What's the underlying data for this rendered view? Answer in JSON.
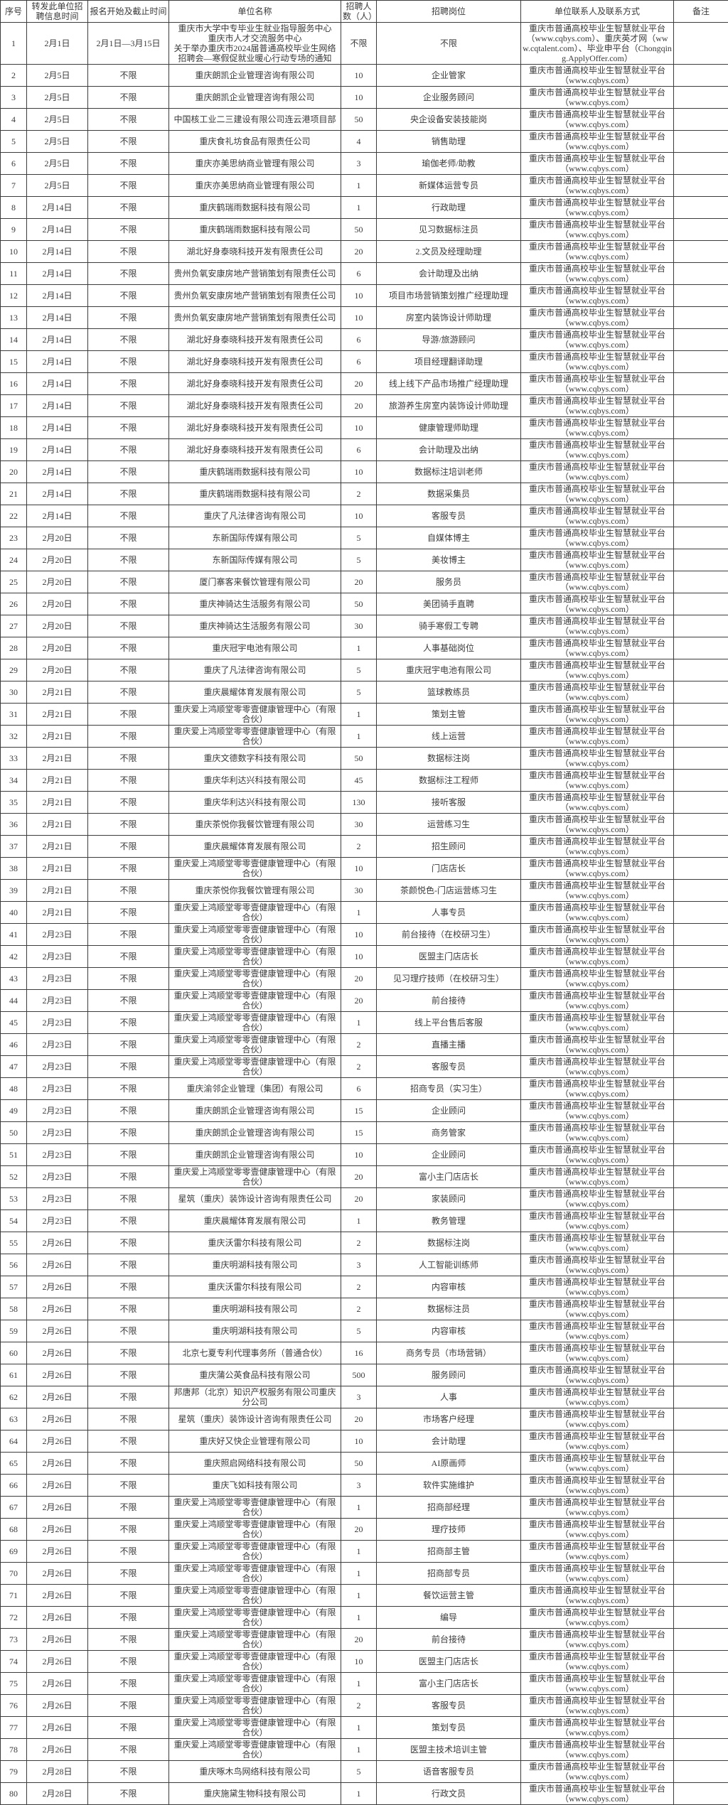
{
  "table": {
    "headers": [
      "序号",
      "转发此单位招聘信息时间",
      "报名开始及截止时间",
      "单位名称",
      "招聘人数（人）",
      "招聘岗位",
      "单位联系人及联系方式",
      "备注"
    ],
    "default_contact": "重庆市普通高校毕业生智慧就业平台（www.cqbys.com）",
    "rows": [
      {
        "seq": "1",
        "fwd": "2月1日",
        "reg": "2月1日—3月15日",
        "company": "重庆市大学中专毕业生就业指导服务中心\n重庆市人才交流服务中心\n关于举办重庆市2024届普通高校毕业生网络招聘会—寒假促就业暖心行动专场的通知",
        "num": "不限",
        "pos": "不限",
        "contact": "重庆市普通高校毕业生智慧就业平台（www.cqbys.com）、重庆英才网（www.cqtalent.com）、毕业申平台（Chongqing.ApplyOffer.com）",
        "note": ""
      },
      {
        "seq": "2",
        "fwd": "2月5日",
        "reg": "不限",
        "company": "重庆朗凯企业管理咨询有限公司",
        "num": "10",
        "pos": "企业管家",
        "note": ""
      },
      {
        "seq": "3",
        "fwd": "2月5日",
        "reg": "不限",
        "company": "重庆朗凯企业管理咨询有限公司",
        "num": "10",
        "pos": "企业服务顾问",
        "note": ""
      },
      {
        "seq": "4",
        "fwd": "2月5日",
        "reg": "不限",
        "company": "中国核工业二三建设有限公司连云港项目部",
        "num": "50",
        "pos": "央企设备安装技能岗",
        "note": ""
      },
      {
        "seq": "5",
        "fwd": "2月5日",
        "reg": "不限",
        "company": "重庆食礼坊食品有限责任公司",
        "num": "4",
        "pos": "销售助理",
        "note": ""
      },
      {
        "seq": "6",
        "fwd": "2月5日",
        "reg": "不限",
        "company": "重庆亦美思纳商业管理有限公司",
        "num": "3",
        "pos": "瑜伽老师/助教",
        "note": ""
      },
      {
        "seq": "7",
        "fwd": "2月5日",
        "reg": "不限",
        "company": "重庆亦美思纳商业管理有限公司",
        "num": "1",
        "pos": "新媒体运营专员",
        "note": ""
      },
      {
        "seq": "8",
        "fwd": "2月14日",
        "reg": "不限",
        "company": "重庆鹤瑞雨数据科技有限公司",
        "num": "1",
        "pos": "行政助理",
        "note": ""
      },
      {
        "seq": "9",
        "fwd": "2月14日",
        "reg": "不限",
        "company": "重庆鹤瑞雨数据科技有限公司",
        "num": "50",
        "pos": "见习数据标注员",
        "note": ""
      },
      {
        "seq": "10",
        "fwd": "2月14日",
        "reg": "不限",
        "company": "湖北好身泰晓科技开发有限责任公司",
        "num": "20",
        "pos": "2.文员及经理助理",
        "note": ""
      },
      {
        "seq": "11",
        "fwd": "2月14日",
        "reg": "不限",
        "company": "贵州负氧安康房地产营销策划有限责任公司",
        "num": "6",
        "pos": "会计助理及出纳",
        "note": ""
      },
      {
        "seq": "12",
        "fwd": "2月14日",
        "reg": "不限",
        "company": "贵州负氧安康房地产营销策划有限责任公司",
        "num": "10",
        "pos": "项目市场营销策划推广经理助理",
        "note": ""
      },
      {
        "seq": "13",
        "fwd": "2月14日",
        "reg": "不限",
        "company": "贵州负氧安康房地产营销策划有限责任公司",
        "num": "10",
        "pos": "房室内装饰设计师助理",
        "note": ""
      },
      {
        "seq": "14",
        "fwd": "2月14日",
        "reg": "不限",
        "company": "湖北好身泰晓科技开发有限责任公司",
        "num": "6",
        "pos": "导游/旅游顾问",
        "note": ""
      },
      {
        "seq": "15",
        "fwd": "2月14日",
        "reg": "不限",
        "company": "湖北好身泰晓科技开发有限责任公司",
        "num": "6",
        "pos": "项目经理翻译助理",
        "note": ""
      },
      {
        "seq": "16",
        "fwd": "2月14日",
        "reg": "不限",
        "company": "湖北好身泰晓科技开发有限责任公司",
        "num": "20",
        "pos": "线上线下产品市场推广经理助理",
        "note": ""
      },
      {
        "seq": "17",
        "fwd": "2月14日",
        "reg": "不限",
        "company": "湖北好身泰晓科技开发有限责任公司",
        "num": "20",
        "pos": "旅游养生房室内装饰设计师助理",
        "note": ""
      },
      {
        "seq": "18",
        "fwd": "2月14日",
        "reg": "不限",
        "company": "湖北好身泰晓科技开发有限责任公司",
        "num": "10",
        "pos": "健康管理师助理",
        "note": ""
      },
      {
        "seq": "19",
        "fwd": "2月14日",
        "reg": "不限",
        "company": "湖北好身泰晓科技开发有限责任公司",
        "num": "6",
        "pos": "会计助理及出纳",
        "note": ""
      },
      {
        "seq": "20",
        "fwd": "2月14日",
        "reg": "不限",
        "company": "重庆鹤瑞雨数据科技有限公司",
        "num": "10",
        "pos": "数据标注培训老师",
        "note": ""
      },
      {
        "seq": "21",
        "fwd": "2月14日",
        "reg": "不限",
        "company": "重庆鹤瑞雨数据科技有限公司",
        "num": "2",
        "pos": "数据采集员",
        "note": ""
      },
      {
        "seq": "22",
        "fwd": "2月14日",
        "reg": "不限",
        "company": "重庆了凡法律咨询有限公司",
        "num": "10",
        "pos": "客服专员",
        "note": ""
      },
      {
        "seq": "23",
        "fwd": "2月20日",
        "reg": "不限",
        "company": "东新国际传媒有限公司",
        "num": "5",
        "pos": "自媒体博主",
        "note": ""
      },
      {
        "seq": "24",
        "fwd": "2月20日",
        "reg": "不限",
        "company": "东新国际传媒有限公司",
        "num": "5",
        "pos": "美妆博主",
        "note": ""
      },
      {
        "seq": "25",
        "fwd": "2月20日",
        "reg": "不限",
        "company": "厦门寨客来餐饮管理有限公司",
        "num": "20",
        "pos": "服务员",
        "note": ""
      },
      {
        "seq": "26",
        "fwd": "2月20日",
        "reg": "不限",
        "company": "重庆神骑达生活服务有限公司",
        "num": "50",
        "pos": "美团骑手直聘",
        "note": ""
      },
      {
        "seq": "27",
        "fwd": "2月20日",
        "reg": "不限",
        "company": "重庆神骑达生活服务有限公司",
        "num": "30",
        "pos": "骑手寒假工专聘",
        "note": ""
      },
      {
        "seq": "28",
        "fwd": "2月20日",
        "reg": "不限",
        "company": "重庆冠宇电池有限公司",
        "num": "1",
        "pos": "人事基础岗位",
        "note": ""
      },
      {
        "seq": "29",
        "fwd": "2月20日",
        "reg": "不限",
        "company": "重庆了凡法律咨询有限公司",
        "num": "5",
        "pos": "重庆冠宇电池有限公司",
        "note": ""
      },
      {
        "seq": "30",
        "fwd": "2月21日",
        "reg": "不限",
        "company": "重庆晨耀体育发展有限公司",
        "num": "5",
        "pos": "篮球教练员",
        "note": ""
      },
      {
        "seq": "31",
        "fwd": "2月21日",
        "reg": "不限",
        "company": "重庆爱上鸿顺堂零零壹健康管理中心（有限合伙）",
        "num": "1",
        "pos": "策划主管",
        "note": ""
      },
      {
        "seq": "32",
        "fwd": "2月21日",
        "reg": "不限",
        "company": "重庆爱上鸿顺堂零零壹健康管理中心（有限合伙）",
        "num": "1",
        "pos": "线上运营",
        "note": ""
      },
      {
        "seq": "33",
        "fwd": "2月21日",
        "reg": "不限",
        "company": "重庆文德数字科技有限公司",
        "num": "50",
        "pos": "数据标注岗",
        "note": ""
      },
      {
        "seq": "34",
        "fwd": "2月21日",
        "reg": "不限",
        "company": "重庆华利达兴科技有限公司",
        "num": "45",
        "pos": "数据标注工程师",
        "note": ""
      },
      {
        "seq": "35",
        "fwd": "2月21日",
        "reg": "不限",
        "company": "重庆华利达兴科技有限公司",
        "num": "130",
        "pos": "接听客服",
        "note": ""
      },
      {
        "seq": "36",
        "fwd": "2月21日",
        "reg": "不限",
        "company": "重庆茶悦你我餐饮管理有限公司",
        "num": "30",
        "pos": "运营练习生",
        "note": ""
      },
      {
        "seq": "37",
        "fwd": "2月21日",
        "reg": "不限",
        "company": "重庆晨耀体育发展有限公司",
        "num": "2",
        "pos": "招生顾问",
        "note": ""
      },
      {
        "seq": "38",
        "fwd": "2月21日",
        "reg": "不限",
        "company": "重庆爱上鸿顺堂零零壹健康管理中心（有限合伙）",
        "num": "10",
        "pos": "门店店长",
        "note": ""
      },
      {
        "seq": "39",
        "fwd": "2月21日",
        "reg": "不限",
        "company": "重庆茶悦你我餐饮管理有限公司",
        "num": "30",
        "pos": "茶颜悦色-门店运营练习生",
        "note": ""
      },
      {
        "seq": "40",
        "fwd": "2月21日",
        "reg": "不限",
        "company": "重庆爱上鸿顺堂零零壹健康管理中心（有限合伙）",
        "num": "1",
        "pos": "人事专员",
        "note": ""
      },
      {
        "seq": "41",
        "fwd": "2月23日",
        "reg": "不限",
        "company": "重庆爱上鸿顺堂零零壹健康管理中心（有限合伙）",
        "num": "10",
        "pos": "前台接待（在校研习生）",
        "note": ""
      },
      {
        "seq": "42",
        "fwd": "2月23日",
        "reg": "不限",
        "company": "重庆爱上鸿顺堂零零壹健康管理中心（有限合伙）",
        "num": "10",
        "pos": "医盟主门店店长",
        "note": ""
      },
      {
        "seq": "43",
        "fwd": "2月23日",
        "reg": "不限",
        "company": "重庆爱上鸿顺堂零零壹健康管理中心（有限合伙）",
        "num": "20",
        "pos": "见习理疗技师（在校研习生）",
        "note": ""
      },
      {
        "seq": "44",
        "fwd": "2月23日",
        "reg": "不限",
        "company": "重庆爱上鸿顺堂零零壹健康管理中心（有限合伙）",
        "num": "20",
        "pos": "前台接待",
        "note": ""
      },
      {
        "seq": "45",
        "fwd": "2月23日",
        "reg": "不限",
        "company": "重庆爱上鸿顺堂零零壹健康管理中心（有限合伙）",
        "num": "1",
        "pos": "线上平台售后客服",
        "note": ""
      },
      {
        "seq": "46",
        "fwd": "2月23日",
        "reg": "不限",
        "company": "重庆爱上鸿顺堂零零壹健康管理中心（有限合伙）",
        "num": "2",
        "pos": "直播主播",
        "note": ""
      },
      {
        "seq": "47",
        "fwd": "2月23日",
        "reg": "不限",
        "company": "重庆爱上鸿顺堂零零壹健康管理中心（有限合伙）",
        "num": "2",
        "pos": "客服专员",
        "note": ""
      },
      {
        "seq": "48",
        "fwd": "2月23日",
        "reg": "不限",
        "company": "重庆渝邻企业管理（集团）有限公司",
        "num": "6",
        "pos": "招商专员（实习生）",
        "note": ""
      },
      {
        "seq": "49",
        "fwd": "2月23日",
        "reg": "不限",
        "company": "重庆朗凯企业管理咨询有限公司",
        "num": "15",
        "pos": "企业顾问",
        "note": ""
      },
      {
        "seq": "50",
        "fwd": "2月23日",
        "reg": "不限",
        "company": "重庆朗凯企业管理咨询有限公司",
        "num": "15",
        "pos": "商务管家",
        "note": ""
      },
      {
        "seq": "51",
        "fwd": "2月23日",
        "reg": "不限",
        "company": "重庆朗凯企业管理咨询有限公司",
        "num": "10",
        "pos": "企业顾问",
        "note": ""
      },
      {
        "seq": "52",
        "fwd": "2月23日",
        "reg": "不限",
        "company": "重庆爱上鸿顺堂零零壹健康管理中心（有限合伙）",
        "num": "20",
        "pos": "富小主门店店长",
        "note": ""
      },
      {
        "seq": "53",
        "fwd": "2月23日",
        "reg": "不限",
        "company": "星筑（重庆）装饰设计咨询有限责任公司",
        "num": "20",
        "pos": "家装顾问",
        "note": ""
      },
      {
        "seq": "54",
        "fwd": "2月23日",
        "reg": "不限",
        "company": "重庆晨耀体育发展有限公司",
        "num": "1",
        "pos": "教务管理",
        "note": ""
      },
      {
        "seq": "55",
        "fwd": "2月26日",
        "reg": "不限",
        "company": "重庆沃雷尔科技有限公司",
        "num": "2",
        "pos": "数据标注岗",
        "note": ""
      },
      {
        "seq": "56",
        "fwd": "2月26日",
        "reg": "不限",
        "company": "重庆明湖科技有限公司",
        "num": "3",
        "pos": "人工智能训练师",
        "note": ""
      },
      {
        "seq": "57",
        "fwd": "2月26日",
        "reg": "不限",
        "company": "重庆沃雷尔科技有限公司",
        "num": "2",
        "pos": "内容审核",
        "note": ""
      },
      {
        "seq": "58",
        "fwd": "2月26日",
        "reg": "不限",
        "company": "重庆明湖科技有限公司",
        "num": "2",
        "pos": "数据标注员",
        "note": ""
      },
      {
        "seq": "59",
        "fwd": "2月26日",
        "reg": "不限",
        "company": "重庆明湖科技有限公司",
        "num": "5",
        "pos": "内容审核",
        "note": ""
      },
      {
        "seq": "60",
        "fwd": "2月26日",
        "reg": "不限",
        "company": "北京七夏专利代理事务所（普通合伙）",
        "num": "16",
        "pos": "商务专员（市场营销）",
        "note": ""
      },
      {
        "seq": "61",
        "fwd": "2月26日",
        "reg": "不限",
        "company": "重庆蒲公英食品科技有限公司",
        "num": "500",
        "pos": "服务顾问",
        "note": ""
      },
      {
        "seq": "62",
        "fwd": "2月26日",
        "reg": "不限",
        "company": "邦唐邦（北京）知识产权服务有限公司重庆分公司",
        "num": "3",
        "pos": "人事",
        "note": ""
      },
      {
        "seq": "63",
        "fwd": "2月26日",
        "reg": "不限",
        "company": "星筑（重庆）装饰设计咨询有限责任公司",
        "num": "20",
        "pos": "市场客户经理",
        "note": ""
      },
      {
        "seq": "64",
        "fwd": "2月26日",
        "reg": "不限",
        "company": "重庆好又快企业管理有限公司",
        "num": "10",
        "pos": "会计助理",
        "note": ""
      },
      {
        "seq": "65",
        "fwd": "2月26日",
        "reg": "不限",
        "company": "重庆照启网络科技有限公司",
        "num": "50",
        "pos": "AI原画师",
        "note": ""
      },
      {
        "seq": "66",
        "fwd": "2月26日",
        "reg": "不限",
        "company": "重庆飞如科技有限公司",
        "num": "3",
        "pos": "软件实施维护",
        "note": ""
      },
      {
        "seq": "67",
        "fwd": "2月26日",
        "reg": "不限",
        "company": "重庆爱上鸿顺堂零零壹健康管理中心（有限合伙）",
        "num": "1",
        "pos": "招商部经理",
        "note": ""
      },
      {
        "seq": "68",
        "fwd": "2月26日",
        "reg": "不限",
        "company": "重庆爱上鸿顺堂零零壹健康管理中心（有限合伙）",
        "num": "20",
        "pos": "理疗技师",
        "note": ""
      },
      {
        "seq": "69",
        "fwd": "2月26日",
        "reg": "不限",
        "company": "重庆爱上鸿顺堂零零壹健康管理中心（有限合伙）",
        "num": "1",
        "pos": "招商部主管",
        "note": ""
      },
      {
        "seq": "70",
        "fwd": "2月26日",
        "reg": "不限",
        "company": "重庆爱上鸿顺堂零零壹健康管理中心（有限合伙）",
        "num": "1",
        "pos": "招商部专员",
        "note": ""
      },
      {
        "seq": "71",
        "fwd": "2月26日",
        "reg": "不限",
        "company": "重庆爱上鸿顺堂零零壹健康管理中心（有限合伙）",
        "num": "1",
        "pos": "餐饮运营主管",
        "note": ""
      },
      {
        "seq": "72",
        "fwd": "2月26日",
        "reg": "不限",
        "company": "重庆爱上鸿顺堂零零壹健康管理中心（有限合伙）",
        "num": "1",
        "pos": "编导",
        "note": ""
      },
      {
        "seq": "73",
        "fwd": "2月26日",
        "reg": "不限",
        "company": "重庆爱上鸿顺堂零零壹健康管理中心（有限合伙）",
        "num": "20",
        "pos": "前台接待",
        "note": ""
      },
      {
        "seq": "74",
        "fwd": "2月26日",
        "reg": "不限",
        "company": "重庆爱上鸿顺堂零零壹健康管理中心（有限合伙）",
        "num": "10",
        "pos": "医盟主门店店长",
        "note": ""
      },
      {
        "seq": "75",
        "fwd": "2月26日",
        "reg": "不限",
        "company": "重庆爱上鸿顺堂零零壹健康管理中心（有限合伙）",
        "num": "1",
        "pos": "富小主门店店长",
        "note": ""
      },
      {
        "seq": "76",
        "fwd": "2月26日",
        "reg": "不限",
        "company": "重庆爱上鸿顺堂零零壹健康管理中心（有限合伙）",
        "num": "2",
        "pos": "客服专员",
        "note": ""
      },
      {
        "seq": "77",
        "fwd": "2月26日",
        "reg": "不限",
        "company": "重庆爱上鸿顺堂零零壹健康管理中心（有限合伙）",
        "num": "1",
        "pos": "策划专员",
        "note": ""
      },
      {
        "seq": "78",
        "fwd": "2月26日",
        "reg": "不限",
        "company": "重庆爱上鸿顺堂零零壹健康管理中心（有限合伙）",
        "num": "1",
        "pos": "医盟主技术培训主管",
        "note": ""
      },
      {
        "seq": "79",
        "fwd": "2月28日",
        "reg": "不限",
        "company": "重庆啄木鸟网络科技有限公司",
        "num": "5",
        "pos": "语音客服专员",
        "note": ""
      },
      {
        "seq": "80",
        "fwd": "2月28日",
        "reg": "不限",
        "company": "重庆施黛生物科技有限公司",
        "num": "1",
        "pos": "行政文员",
        "note": ""
      }
    ]
  }
}
